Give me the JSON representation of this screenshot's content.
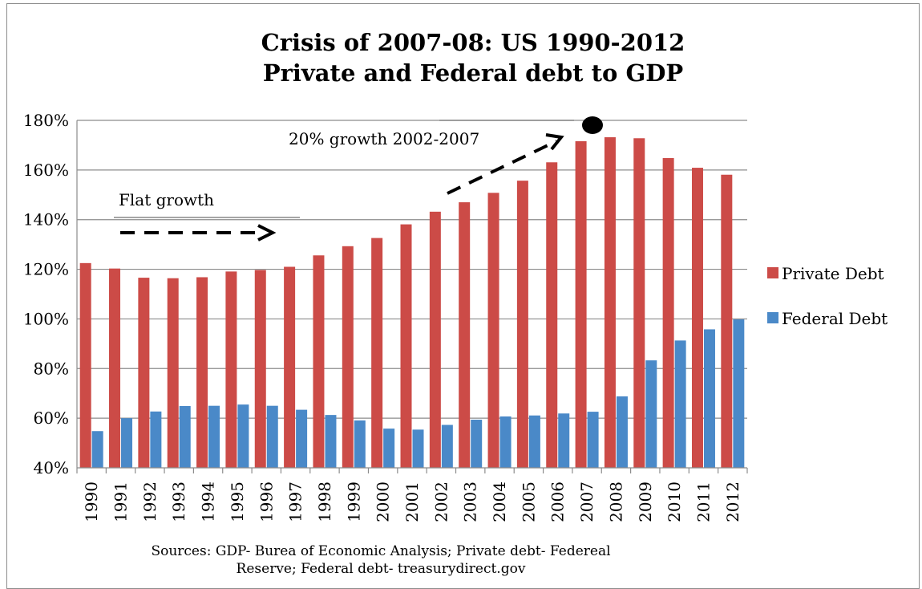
{
  "chart_data": {
    "type": "bar",
    "title_line1": "Crisis of 2007-08: US 1990-2012",
    "title_line2": "Private and Federal debt to GDP",
    "categories": [
      "1990",
      "1991",
      "1992",
      "1993",
      "1994",
      "1995",
      "1996",
      "1997",
      "1998",
      "1999",
      "2000",
      "2001",
      "2002",
      "2003",
      "2004",
      "2005",
      "2006",
      "2007",
      "2008",
      "2009",
      "2010",
      "2011",
      "2012"
    ],
    "series": [
      {
        "name": "Private Debt",
        "color": "#cc4b47",
        "values": [
          122.5,
          120.3,
          116.6,
          116.4,
          116.8,
          119.1,
          119.7,
          121.0,
          125.6,
          129.3,
          132.6,
          138.1,
          143.2,
          147.0,
          150.8,
          155.7,
          163.1,
          171.6,
          173.2,
          172.8,
          164.8,
          160.9,
          158.1
        ]
      },
      {
        "name": "Federal Debt",
        "color": "#4a89c8",
        "values": [
          54.8,
          60.0,
          62.7,
          64.9,
          65.0,
          65.5,
          65.0,
          63.4,
          61.3,
          59.1,
          55.8,
          55.4,
          57.3,
          59.4,
          60.7,
          61.1,
          61.9,
          62.6,
          68.8,
          83.3,
          91.3,
          95.8,
          99.8
        ]
      }
    ],
    "ylim": [
      40,
      180
    ],
    "yticks": [
      "180%",
      "160%",
      "140%",
      "120%",
      "100%",
      "80%",
      "60%",
      "40%"
    ],
    "ytick_values": [
      180,
      160,
      140,
      120,
      100,
      80,
      60,
      40
    ],
    "grid": true,
    "legend_position": "right",
    "annotations": {
      "flat": "Flat growth",
      "growth": "20% growth 2002-2007"
    },
    "sources_line1": "Sources:  GDP- Burea of Economic Analysis; Private debt- Federeal",
    "sources_line2": "Reserve; Federal debt- treasurydirect.gov"
  }
}
